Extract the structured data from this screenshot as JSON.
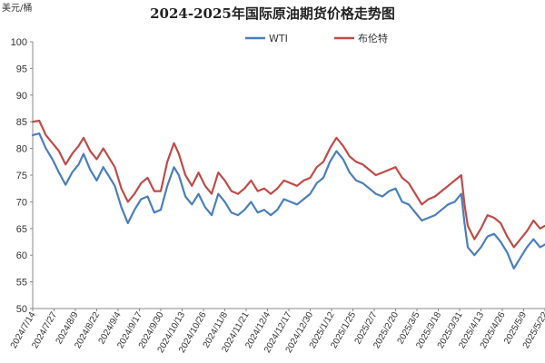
{
  "chart_data": {
    "type": "line",
    "title": "2024-2025年国际原油期货价格走势图",
    "ylabel": "美元/桶",
    "ylim": [
      50,
      100
    ],
    "yticks": [
      50,
      55,
      60,
      65,
      70,
      75,
      80,
      85,
      90,
      95,
      100
    ],
    "xlim": [
      "2024-07-14",
      "2025-05-22"
    ],
    "xticks": [
      "2024/7/14",
      "2024/7/27",
      "2024/8/9",
      "2024/8/22",
      "2024/9/4",
      "2024/9/17",
      "2024/9/30",
      "2024/10/13",
      "2024/10/26",
      "2024/11/8",
      "2024/11/21",
      "2024/12/4",
      "2024/12/17",
      "2024/12/30",
      "2025/1/12",
      "2025/1/25",
      "2025/2/7",
      "2025/2/20",
      "2025/3/5",
      "2025/3/18",
      "2025/3/31",
      "2025/4/13",
      "2025/4/26",
      "2025/5/9",
      "2025/5/22"
    ],
    "grid": false,
    "legend_position": "top-center",
    "colors": {
      "WTI": "#4a7ebb",
      "布伦特": "#be4b48"
    },
    "series": [
      {
        "name": "WTI",
        "points": [
          [
            "2024-07-14",
            82.5
          ],
          [
            "2024-07-18",
            82.8
          ],
          [
            "2024-07-22",
            80.0
          ],
          [
            "2024-07-26",
            78.0
          ],
          [
            "2024-07-30",
            75.5
          ],
          [
            "2024-08-03",
            73.2
          ],
          [
            "2024-08-07",
            75.5
          ],
          [
            "2024-08-11",
            77.0
          ],
          [
            "2024-08-14",
            79.0
          ],
          [
            "2024-08-18",
            76.0
          ],
          [
            "2024-08-22",
            74.0
          ],
          [
            "2024-08-26",
            76.5
          ],
          [
            "2024-08-29",
            75.0
          ],
          [
            "2024-09-02",
            73.0
          ],
          [
            "2024-09-06",
            69.0
          ],
          [
            "2024-09-10",
            66.0
          ],
          [
            "2024-09-14",
            68.5
          ],
          [
            "2024-09-18",
            70.5
          ],
          [
            "2024-09-22",
            71.0
          ],
          [
            "2024-09-26",
            68.0
          ],
          [
            "2024-09-30",
            68.5
          ],
          [
            "2024-10-04",
            73.0
          ],
          [
            "2024-10-08",
            76.5
          ],
          [
            "2024-10-11",
            75.0
          ],
          [
            "2024-10-15",
            71.0
          ],
          [
            "2024-10-19",
            69.5
          ],
          [
            "2024-10-23",
            71.5
          ],
          [
            "2024-10-27",
            69.0
          ],
          [
            "2024-10-31",
            67.5
          ],
          [
            "2024-11-04",
            71.5
          ],
          [
            "2024-11-08",
            70.0
          ],
          [
            "2024-11-12",
            68.0
          ],
          [
            "2024-11-16",
            67.5
          ],
          [
            "2024-11-20",
            68.5
          ],
          [
            "2024-11-24",
            70.0
          ],
          [
            "2024-11-28",
            68.0
          ],
          [
            "2024-12-02",
            68.5
          ],
          [
            "2024-12-06",
            67.5
          ],
          [
            "2024-12-10",
            68.5
          ],
          [
            "2024-12-14",
            70.5
          ],
          [
            "2024-12-18",
            70.0
          ],
          [
            "2024-12-22",
            69.5
          ],
          [
            "2024-12-26",
            70.5
          ],
          [
            "2024-12-30",
            71.5
          ],
          [
            "2025-01-03",
            73.5
          ],
          [
            "2025-01-07",
            74.5
          ],
          [
            "2025-01-11",
            77.5
          ],
          [
            "2025-01-15",
            79.5
          ],
          [
            "2025-01-19",
            78.0
          ],
          [
            "2025-01-23",
            75.5
          ],
          [
            "2025-01-27",
            74.0
          ],
          [
            "2025-01-31",
            73.5
          ],
          [
            "2025-02-04",
            72.5
          ],
          [
            "2025-02-08",
            71.5
          ],
          [
            "2025-02-12",
            71.0
          ],
          [
            "2025-02-16",
            72.0
          ],
          [
            "2025-02-20",
            72.5
          ],
          [
            "2025-02-24",
            70.0
          ],
          [
            "2025-02-28",
            69.5
          ],
          [
            "2025-03-04",
            68.0
          ],
          [
            "2025-03-08",
            66.5
          ],
          [
            "2025-03-12",
            67.0
          ],
          [
            "2025-03-16",
            67.5
          ],
          [
            "2025-03-20",
            68.5
          ],
          [
            "2025-03-24",
            69.5
          ],
          [
            "2025-03-28",
            70.0
          ],
          [
            "2025-04-01",
            71.5
          ],
          [
            "2025-04-03",
            66.0
          ],
          [
            "2025-04-05",
            61.5
          ],
          [
            "2025-04-09",
            60.0
          ],
          [
            "2025-04-13",
            61.5
          ],
          [
            "2025-04-17",
            63.5
          ],
          [
            "2025-04-21",
            64.0
          ],
          [
            "2025-04-25",
            62.5
          ],
          [
            "2025-04-29",
            60.5
          ],
          [
            "2025-05-03",
            57.5
          ],
          [
            "2025-05-07",
            59.5
          ],
          [
            "2025-05-11",
            61.5
          ],
          [
            "2025-05-15",
            63.0
          ],
          [
            "2025-05-19",
            61.5
          ],
          [
            "2025-05-22",
            62.0
          ]
        ]
      },
      {
        "name": "布伦特",
        "points": [
          [
            "2024-07-14",
            85.0
          ],
          [
            "2024-07-18",
            85.2
          ],
          [
            "2024-07-22",
            82.5
          ],
          [
            "2024-07-26",
            81.0
          ],
          [
            "2024-07-30",
            79.5
          ],
          [
            "2024-08-03",
            77.0
          ],
          [
            "2024-08-07",
            79.0
          ],
          [
            "2024-08-11",
            80.5
          ],
          [
            "2024-08-14",
            82.0
          ],
          [
            "2024-08-18",
            79.5
          ],
          [
            "2024-08-22",
            78.0
          ],
          [
            "2024-08-26",
            80.0
          ],
          [
            "2024-08-29",
            78.5
          ],
          [
            "2024-09-02",
            76.5
          ],
          [
            "2024-09-06",
            72.5
          ],
          [
            "2024-09-10",
            70.0
          ],
          [
            "2024-09-14",
            71.5
          ],
          [
            "2024-09-18",
            73.5
          ],
          [
            "2024-09-22",
            74.5
          ],
          [
            "2024-09-26",
            72.0
          ],
          [
            "2024-09-30",
            72.0
          ],
          [
            "2024-10-04",
            77.5
          ],
          [
            "2024-10-08",
            81.0
          ],
          [
            "2024-10-11",
            79.0
          ],
          [
            "2024-10-15",
            75.0
          ],
          [
            "2024-10-19",
            73.0
          ],
          [
            "2024-10-23",
            75.5
          ],
          [
            "2024-10-27",
            73.0
          ],
          [
            "2024-10-31",
            71.5
          ],
          [
            "2024-11-04",
            75.5
          ],
          [
            "2024-11-08",
            74.0
          ],
          [
            "2024-11-12",
            72.0
          ],
          [
            "2024-11-16",
            71.5
          ],
          [
            "2024-11-20",
            72.5
          ],
          [
            "2024-11-24",
            74.0
          ],
          [
            "2024-11-28",
            72.0
          ],
          [
            "2024-12-02",
            72.5
          ],
          [
            "2024-12-06",
            71.5
          ],
          [
            "2024-12-10",
            72.5
          ],
          [
            "2024-12-14",
            74.0
          ],
          [
            "2024-12-18",
            73.5
          ],
          [
            "2024-12-22",
            73.0
          ],
          [
            "2024-12-26",
            74.0
          ],
          [
            "2024-12-30",
            74.5
          ],
          [
            "2025-01-03",
            76.5
          ],
          [
            "2025-01-07",
            77.5
          ],
          [
            "2025-01-11",
            80.0
          ],
          [
            "2025-01-15",
            82.0
          ],
          [
            "2025-01-19",
            80.5
          ],
          [
            "2025-01-23",
            78.5
          ],
          [
            "2025-01-27",
            77.5
          ],
          [
            "2025-01-31",
            77.0
          ],
          [
            "2025-02-04",
            76.0
          ],
          [
            "2025-02-08",
            75.0
          ],
          [
            "2025-02-12",
            75.5
          ],
          [
            "2025-02-16",
            76.0
          ],
          [
            "2025-02-20",
            76.5
          ],
          [
            "2025-02-24",
            74.5
          ],
          [
            "2025-02-28",
            73.5
          ],
          [
            "2025-03-04",
            71.5
          ],
          [
            "2025-03-08",
            69.5
          ],
          [
            "2025-03-12",
            70.5
          ],
          [
            "2025-03-16",
            71.0
          ],
          [
            "2025-03-20",
            72.0
          ],
          [
            "2025-03-24",
            73.0
          ],
          [
            "2025-03-28",
            74.0
          ],
          [
            "2025-04-01",
            75.0
          ],
          [
            "2025-04-03",
            69.5
          ],
          [
            "2025-04-05",
            65.5
          ],
          [
            "2025-04-09",
            63.0
          ],
          [
            "2025-04-13",
            65.0
          ],
          [
            "2025-04-17",
            67.5
          ],
          [
            "2025-04-21",
            67.0
          ],
          [
            "2025-04-25",
            66.0
          ],
          [
            "2025-04-29",
            63.5
          ],
          [
            "2025-05-03",
            61.5
          ],
          [
            "2025-05-07",
            63.0
          ],
          [
            "2025-05-11",
            64.5
          ],
          [
            "2025-05-15",
            66.5
          ],
          [
            "2025-05-19",
            65.0
          ],
          [
            "2025-05-22",
            65.5
          ]
        ]
      }
    ]
  }
}
